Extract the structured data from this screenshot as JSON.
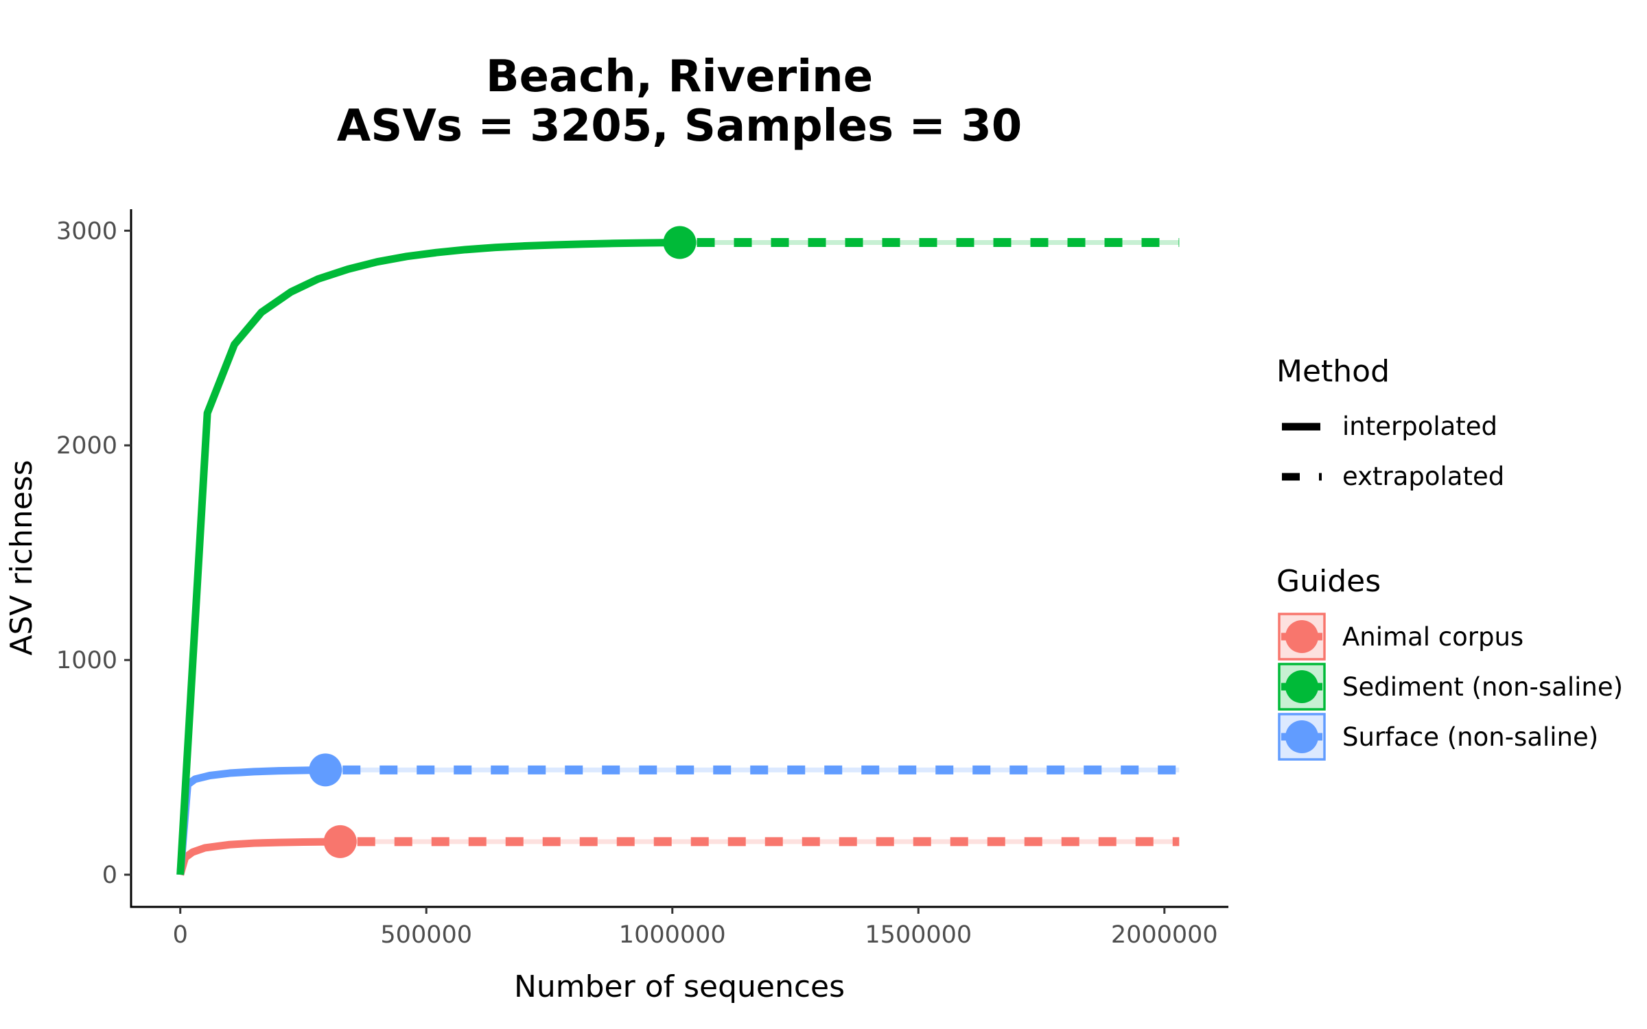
{
  "chart_data": {
    "type": "line",
    "title": "Beach, Riverine",
    "subtitle": "ASVs = 3205, Samples = 30",
    "xlabel": "Number of sequences",
    "ylabel": "ASV richness",
    "xlim": [
      -100000,
      2130000
    ],
    "ylim": [
      -150,
      3100
    ],
    "xticks": [
      0,
      500000,
      1000000,
      1500000,
      2000000
    ],
    "yticks": [
      0,
      1000,
      2000,
      3000
    ],
    "xtick_labels": [
      "0",
      "500000",
      "1000000",
      "1500000",
      "2000000"
    ],
    "ytick_labels": [
      "0",
      "1000",
      "2000",
      "3000"
    ],
    "grid": false,
    "legend_placement": "right",
    "legend_method": {
      "title": "Method",
      "items": [
        {
          "label": "interpolated",
          "style": "solid"
        },
        {
          "label": "extrapolated",
          "style": "dashed"
        }
      ]
    },
    "legend_guides": {
      "title": "Guides",
      "items": [
        "Animal corpus",
        "Sediment (non-saline)",
        "Surface (non-saline)"
      ]
    },
    "series": [
      {
        "name": "Animal corpus",
        "color": "#F8766D",
        "interpolated": {
          "x": [
            0,
            10000,
            25000,
            50000,
            100000,
            150000,
            200000,
            250000,
            300000,
            325000
          ],
          "y": [
            0,
            80,
            105,
            125,
            140,
            147,
            150,
            152,
            153,
            154
          ]
        },
        "observed": {
          "x": 325000,
          "y": 154
        },
        "extrapolated": {
          "x": [
            325000,
            2030000
          ],
          "y": [
            154,
            154
          ]
        }
      },
      {
        "name": "Sediment (non-saline)",
        "color": "#00BA38",
        "interpolated": {
          "x": [
            0,
            55000,
            110000,
            165000,
            225000,
            280000,
            340000,
            400000,
            460000,
            520000,
            580000,
            640000,
            700000,
            760000,
            820000,
            880000,
            940000,
            1015000
          ],
          "y": [
            0,
            2150,
            2470,
            2620,
            2715,
            2775,
            2820,
            2855,
            2880,
            2898,
            2912,
            2922,
            2929,
            2934,
            2938,
            2941,
            2943,
            2945
          ]
        },
        "observed": {
          "x": 1015000,
          "y": 2945
        },
        "extrapolated": {
          "x": [
            1015000,
            2030000
          ],
          "y": [
            2945,
            2945
          ]
        }
      },
      {
        "name": "Surface (non-saline)",
        "color": "#619CFF",
        "interpolated": {
          "x": [
            0,
            15000,
            30000,
            60000,
            100000,
            150000,
            200000,
            250000,
            295000
          ],
          "y": [
            0,
            420,
            445,
            462,
            473,
            480,
            484,
            486,
            488
          ]
        },
        "observed": {
          "x": 295000,
          "y": 488
        },
        "extrapolated": {
          "x": [
            295000,
            2030000
          ],
          "y": [
            488,
            488
          ]
        }
      }
    ]
  }
}
